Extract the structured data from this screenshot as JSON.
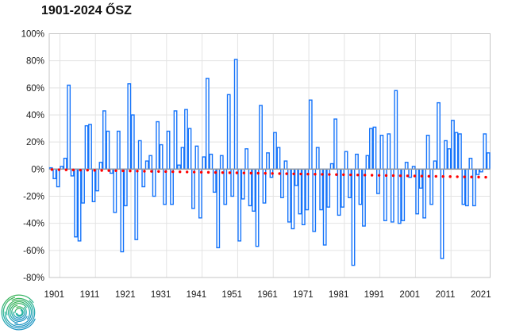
{
  "title": "1901-2024 ŐSZ",
  "chart_data": {
    "type": "bar",
    "title": "1901-2024 ŐSZ",
    "xlabel": "",
    "ylabel": "",
    "unit": "%",
    "start_year": 1901,
    "end_year": 2024,
    "values": [
      1,
      -7,
      -13,
      2,
      8,
      62,
      -5,
      -50,
      -53,
      -25,
      32,
      33,
      -24,
      -16,
      5,
      43,
      28,
      -3,
      -32,
      28,
      -61,
      -27,
      63,
      40,
      -52,
      21,
      -13,
      6,
      10,
      -20,
      35,
      18,
      -26,
      28,
      -26,
      43,
      3,
      16,
      44,
      30,
      -29,
      17,
      -36,
      9,
      67,
      11,
      -17,
      -58,
      10,
      -26,
      55,
      -20,
      81,
      -53,
      -22,
      15,
      -27,
      -31,
      -57,
      47,
      -25,
      12,
      -6,
      27,
      16,
      -21,
      6,
      -39,
      -44,
      -12,
      -33,
      -41,
      -30,
      51,
      -46,
      16,
      -30,
      -56,
      -28,
      4,
      37,
      -34,
      -28,
      13,
      -21,
      -71,
      11,
      -26,
      -42,
      10,
      30,
      31,
      -18,
      25,
      -38,
      26,
      -39,
      58,
      -40,
      -38,
      5,
      -6,
      2,
      -33,
      -14,
      -36,
      25,
      -26,
      6,
      49,
      -66,
      21,
      15,
      36,
      27,
      26,
      -26,
      -27,
      8,
      -27,
      -4,
      -2,
      26,
      12
    ],
    "x_tick_labels": [
      "1901",
      "1911",
      "1921",
      "1931",
      "1941",
      "1951",
      "1961",
      "1971",
      "1981",
      "1991",
      "2001",
      "2011",
      "2021"
    ],
    "y_tick_labels": [
      "100%",
      "80%",
      "60%",
      "40%",
      "20%",
      "0%",
      "-20%",
      "-40%",
      "-60%",
      "-80%"
    ],
    "ylim": [
      -80,
      100
    ],
    "y_step": 20,
    "grid": true,
    "legend": false,
    "trend": {
      "type": "dotted-line",
      "start_value": -0.3,
      "end_value": -6.0,
      "color": "#FF0000"
    }
  },
  "colors": {
    "bar_stroke": "#1473FA",
    "bar_fill": "#FFFFFF",
    "gridline": "#E3E3E3",
    "zero_line": "#9A9A9A",
    "frame": "#C6C6C6",
    "trend_dot": "#FF0000",
    "text": "#1A1A1A"
  },
  "logo": {
    "name": "hungaromet-spiral-logo",
    "colors": [
      "#45B649",
      "#2BB4A3",
      "#2196C4"
    ]
  }
}
